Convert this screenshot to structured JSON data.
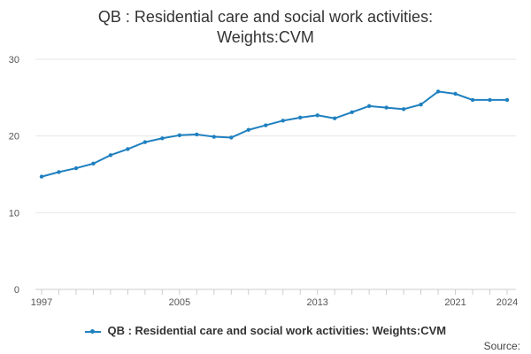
{
  "chart_data": {
    "type": "line",
    "title_line1": "QB : Residential care and social work activities:",
    "title_line2": "Weights:CVM",
    "x": [
      1997,
      1998,
      1999,
      2000,
      2001,
      2002,
      2003,
      2004,
      2005,
      2006,
      2007,
      2008,
      2009,
      2010,
      2011,
      2012,
      2013,
      2014,
      2015,
      2016,
      2017,
      2018,
      2019,
      2020,
      2021,
      2022,
      2023,
      2024
    ],
    "series": [
      {
        "name": "QB : Residential care and social work activities: Weights:CVM",
        "values": [
          14.7,
          15.3,
          15.8,
          16.4,
          17.5,
          18.3,
          19.2,
          19.7,
          20.1,
          20.2,
          19.9,
          19.8,
          20.8,
          21.4,
          22.0,
          22.4,
          22.7,
          22.3,
          23.1,
          23.9,
          23.7,
          23.5,
          24.1,
          25.8,
          25.5,
          24.7,
          24.7,
          24.7
        ],
        "color": "#1f80c0"
      }
    ],
    "xlim": [
      1997,
      2024
    ],
    "ylim": [
      0,
      30
    ],
    "yticks": [
      0,
      10,
      20,
      30
    ],
    "xtick_labels": [
      "1997",
      "2005",
      "2013",
      "2021",
      "2024"
    ],
    "grid": true,
    "legend_position": "bottom"
  },
  "footer": {
    "source_label": "Source:"
  }
}
